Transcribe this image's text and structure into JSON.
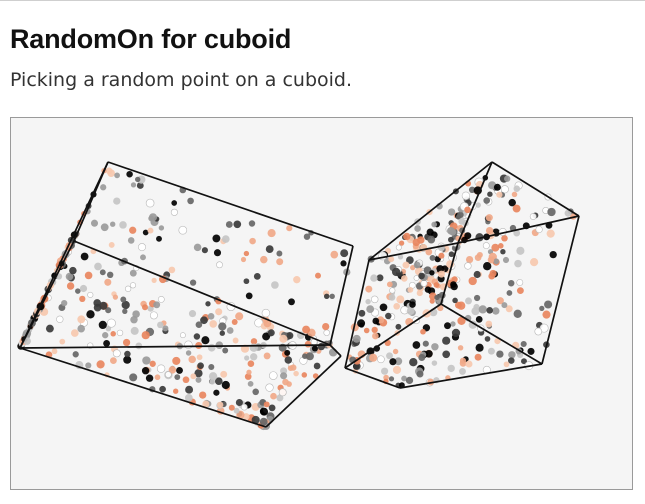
{
  "header": {
    "title": "RandomOn for cuboid",
    "subtitle": "Picking a random point on a cuboid."
  },
  "figure": {
    "background": "#f5f5f5",
    "edge_color": "#111111",
    "point_palette": [
      "#000000",
      "#3a3a3a",
      "#666666",
      "#9a9a9a",
      "#c4c4c4",
      "#ffffff",
      "#e8855e",
      "#f0a888",
      "#f6c8ae"
    ]
  }
}
